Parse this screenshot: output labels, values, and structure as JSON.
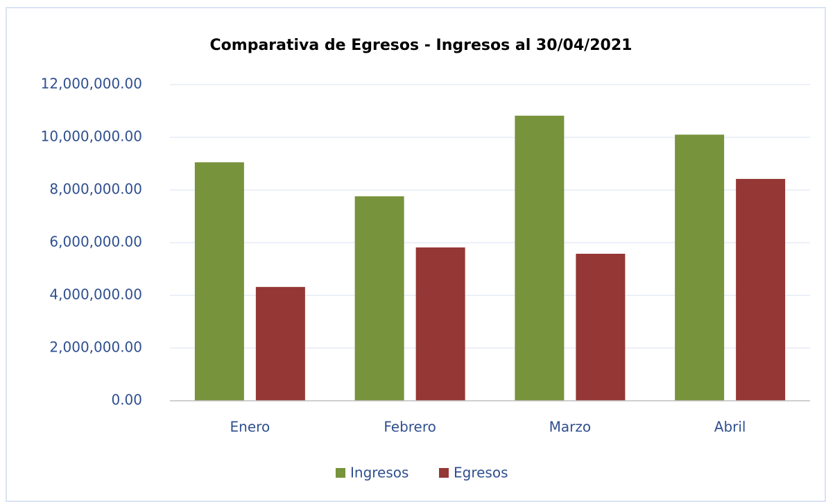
{
  "chart_data": {
    "type": "bar",
    "title": "Comparativa de Egresos - Ingresos al 30/04/2021",
    "categories": [
      "Enero",
      "Febrero",
      "Marzo",
      "Abril"
    ],
    "series": [
      {
        "name": "Ingresos",
        "color": "#77933c",
        "values": [
          9050000,
          7760000,
          10820000,
          10100000
        ]
      },
      {
        "name": "Egresos",
        "color": "#953735",
        "values": [
          4320000,
          5820000,
          5580000,
          8420000
        ]
      }
    ],
    "ylim": [
      0,
      12000000
    ],
    "yticks": [
      {
        "value": 0,
        "label": "0.00"
      },
      {
        "value": 2000000,
        "label": "2,000,000.00"
      },
      {
        "value": 4000000,
        "label": "4,000,000.00"
      },
      {
        "value": 6000000,
        "label": "6,000,000.00"
      },
      {
        "value": 8000000,
        "label": "8,000,000.00"
      },
      {
        "value": 10000000,
        "label": "10,000,000.00"
      },
      {
        "value": 12000000,
        "label": "12,000,000.00"
      }
    ],
    "grid": true,
    "legend": "bottom"
  }
}
